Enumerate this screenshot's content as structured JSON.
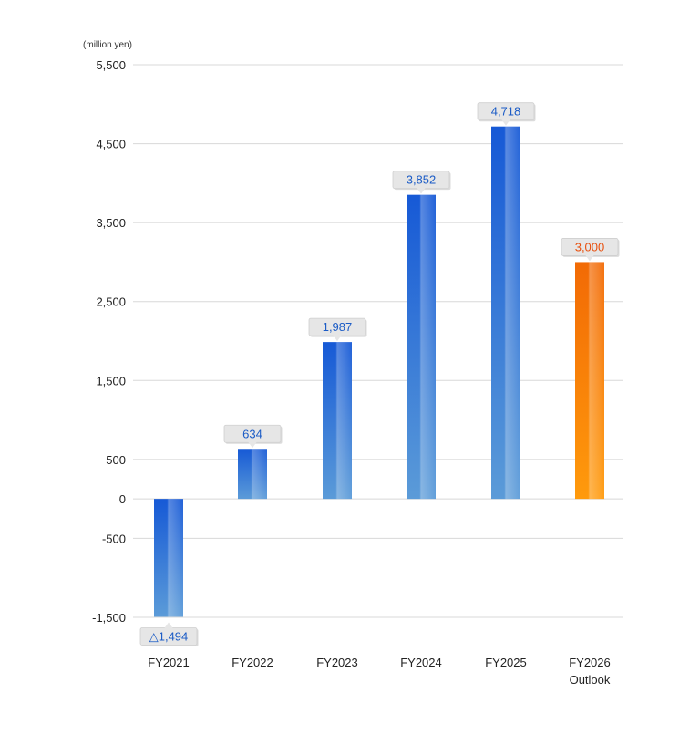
{
  "chart_data": {
    "type": "bar",
    "unit_label": "(million yen)",
    "categories": [
      "FY2021",
      "FY2022",
      "FY2023",
      "FY2024",
      "FY2025",
      "FY2026\nOutlook"
    ],
    "values": [
      -1494,
      634,
      1987,
      3852,
      4718,
      3000
    ],
    "value_labels": [
      "△1,494",
      "634",
      "1,987",
      "3,852",
      "4,718",
      "3,000"
    ],
    "yticks": [
      5500,
      4500,
      3500,
      2500,
      1500,
      500,
      0,
      -500,
      -1500
    ],
    "ytick_labels": [
      "5,500",
      "4,500",
      "3,500",
      "2,500",
      "1,500",
      "500",
      "0",
      "-500",
      "-1,500"
    ],
    "ylim": [
      -1500,
      5500
    ],
    "grid": true,
    "colors": {
      "actual_top": "#1659d6",
      "actual_bottom": "#5b9bd8",
      "forecast_top": "#f26a05",
      "forecast_bottom": "#ff9a0c",
      "actual_label": "#1a5bc6",
      "forecast_label": "#e8500f",
      "grid": "#d8d8d8",
      "axis_text": "#222222",
      "callout_fill": "#e6e6e6"
    },
    "forecast_index": 5
  }
}
